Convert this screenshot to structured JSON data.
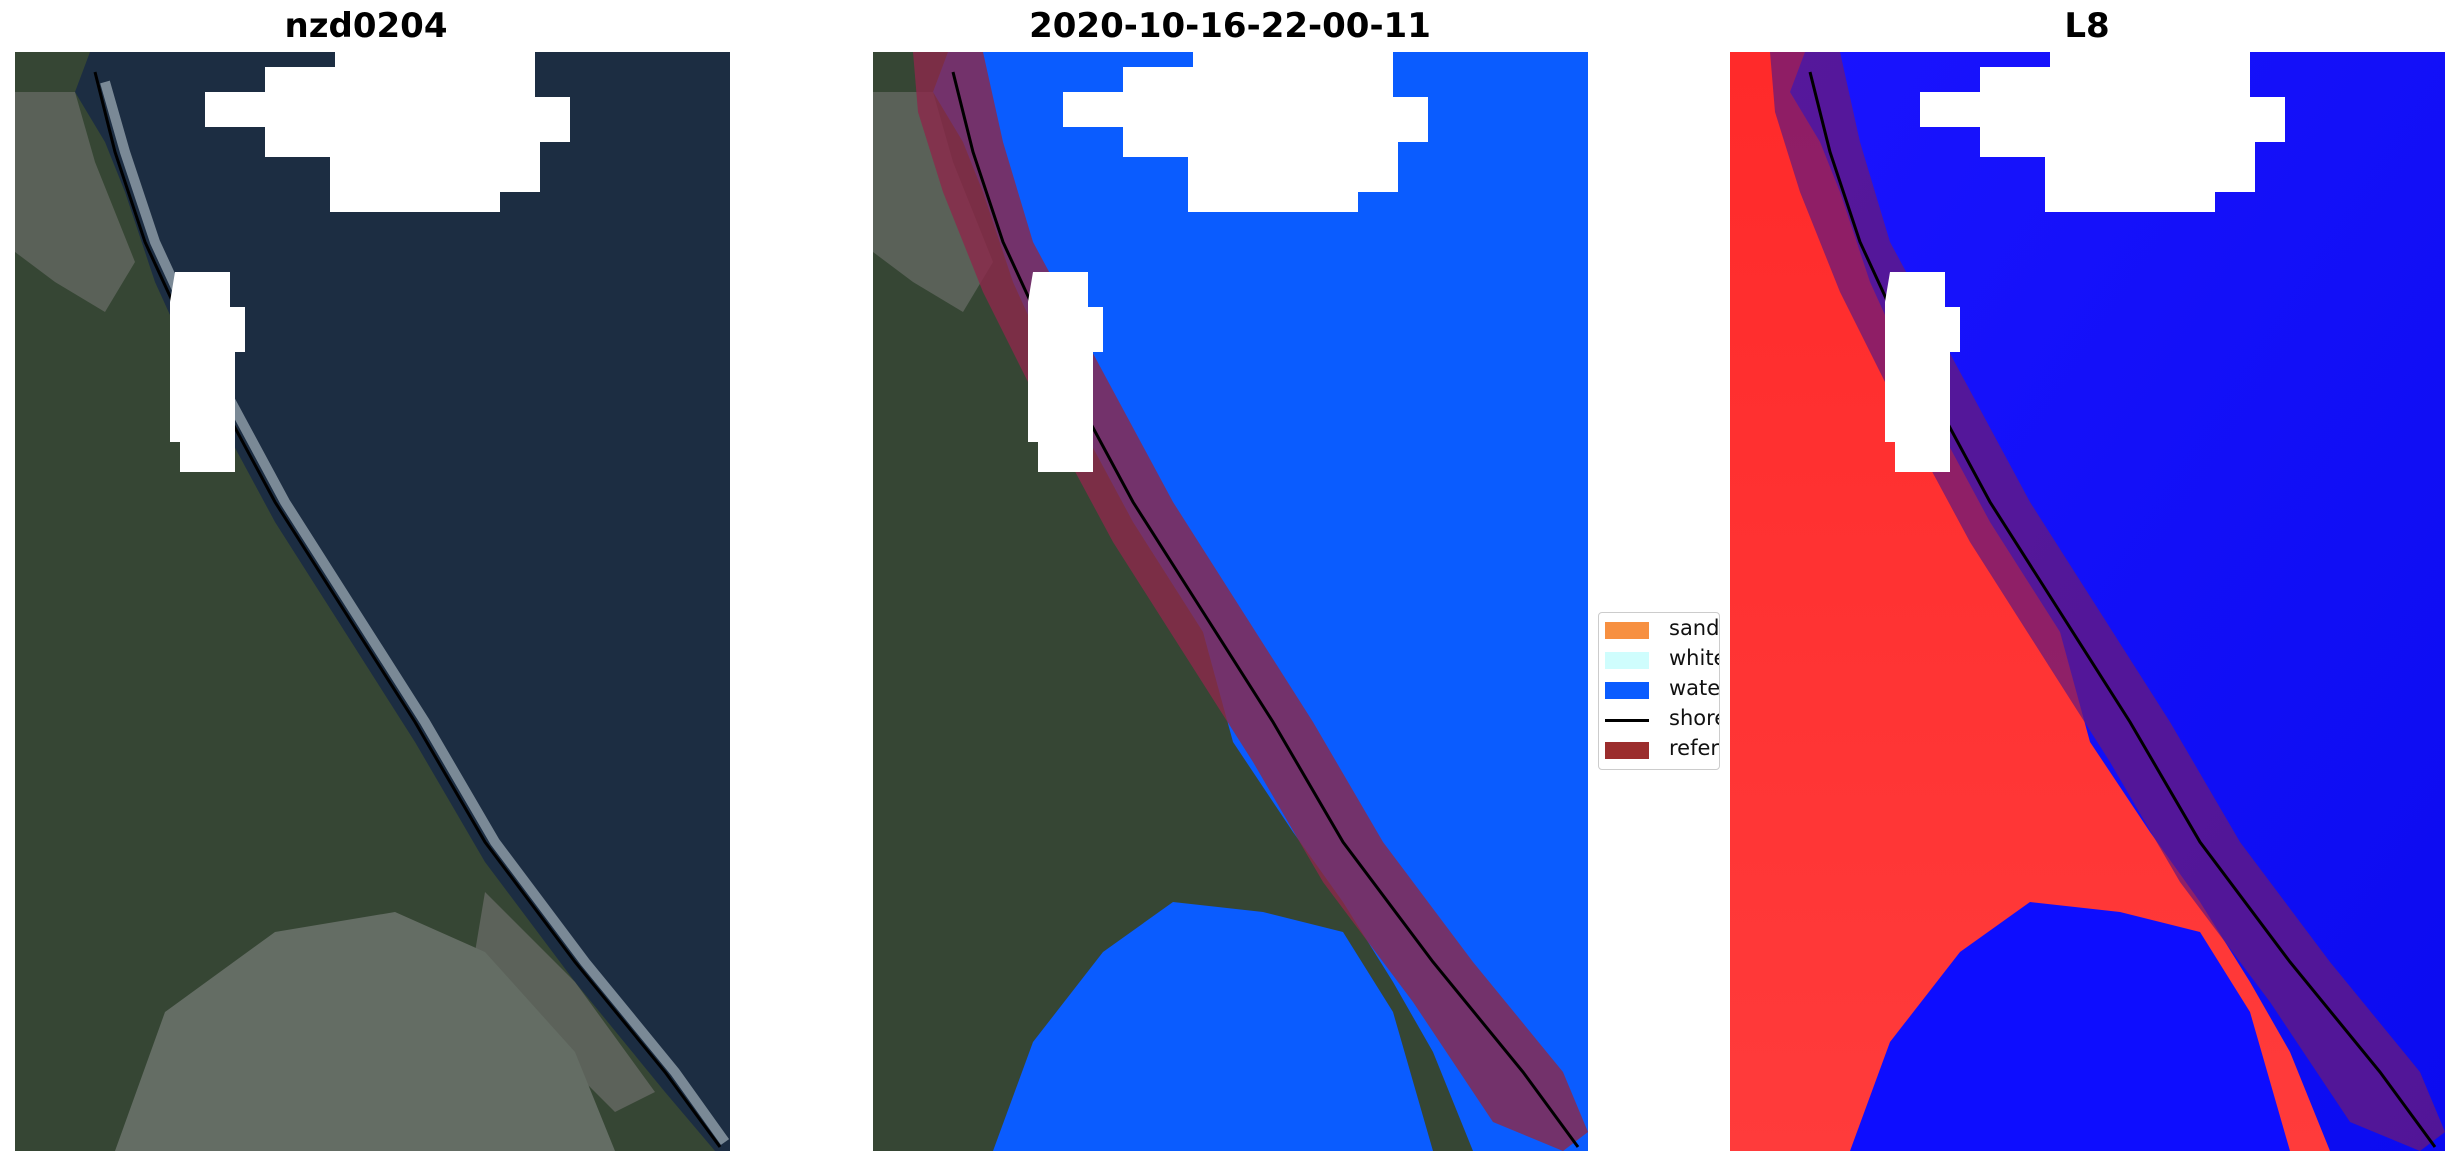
{
  "titles": {
    "left": "nzd0204",
    "middle": "2020-10-16-22-00-11",
    "right": "L8"
  },
  "legend": {
    "items": [
      {
        "label": "sand",
        "color": "#f79041",
        "kind": "patch"
      },
      {
        "label": "whitew",
        "color": "#cffdfd",
        "kind": "patch"
      },
      {
        "label": "water",
        "color": "#0a5cff",
        "kind": "patch"
      },
      {
        "label": "shorel",
        "color": "#000000",
        "kind": "line"
      },
      {
        "label": "referer",
        "color": "#9b2d2d",
        "kind": "patch"
      }
    ]
  },
  "colors": {
    "ocean_rgb": "#1d2f45",
    "land_rgb": "#3b4a3b",
    "mudflat_rgb": "#6b7468",
    "cloud_mask": "#ffffff",
    "water_class": "#0a5cff",
    "reference_buffer": "#8b2a4a",
    "index_land": "#ff2a2a",
    "index_water": "#1010ff",
    "shoreline": "#000000"
  }
}
